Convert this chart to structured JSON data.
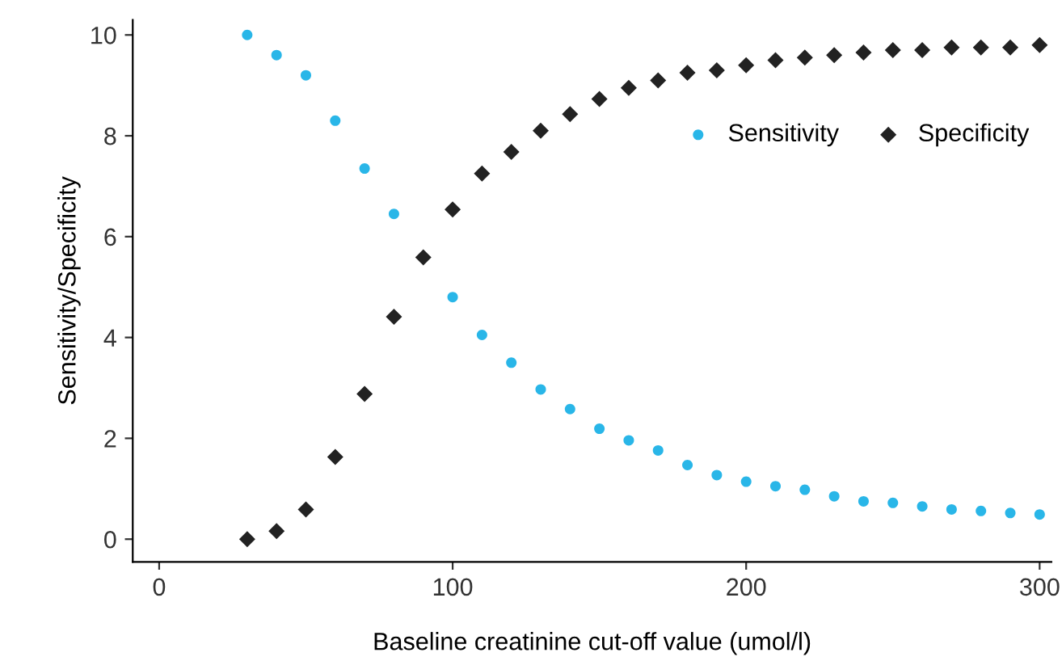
{
  "chart_data": {
    "type": "scatter",
    "xlabel": "Baseline creatinine cut-off value (umol/l)",
    "ylabel": "Sensitivity/Specificity",
    "x": [
      30,
      40,
      50,
      60,
      70,
      80,
      90,
      100,
      110,
      120,
      130,
      140,
      150,
      160,
      170,
      180,
      190,
      200,
      210,
      220,
      230,
      240,
      250,
      260,
      270,
      280,
      290,
      300
    ],
    "series": [
      {
        "name": "Sensitivity",
        "color": "#29b6e8",
        "marker": "circle",
        "values": [
          10,
          9.6,
          9.2,
          8.3,
          7.35,
          6.45,
          null,
          4.8,
          4.05,
          3.5,
          2.97,
          2.58,
          2.19,
          1.96,
          1.76,
          1.47,
          1.27,
          1.14,
          1.05,
          0.98,
          0.85,
          0.75,
          0.72,
          0.65,
          0.59,
          0.56,
          0.52,
          0.49
        ]
      },
      {
        "name": "Specificity",
        "color": "#222222",
        "marker": "diamond",
        "values": [
          0,
          0.16,
          0.59,
          1.63,
          2.88,
          4.41,
          5.59,
          6.54,
          7.25,
          7.68,
          8.1,
          8.43,
          8.73,
          8.95,
          9.1,
          9.25,
          9.3,
          9.4,
          9.5,
          9.55,
          9.6,
          9.65,
          9.7,
          9.7,
          9.75,
          9.75,
          9.75,
          9.8
        ]
      }
    ],
    "xlim": [
      -9,
      304
    ],
    "ylim": [
      -0.45,
      10.3
    ],
    "xticks": [
      0,
      100,
      200,
      300
    ],
    "yticks": [
      0,
      2,
      4,
      6,
      8,
      10
    ],
    "grid": false,
    "legend": "top right"
  }
}
